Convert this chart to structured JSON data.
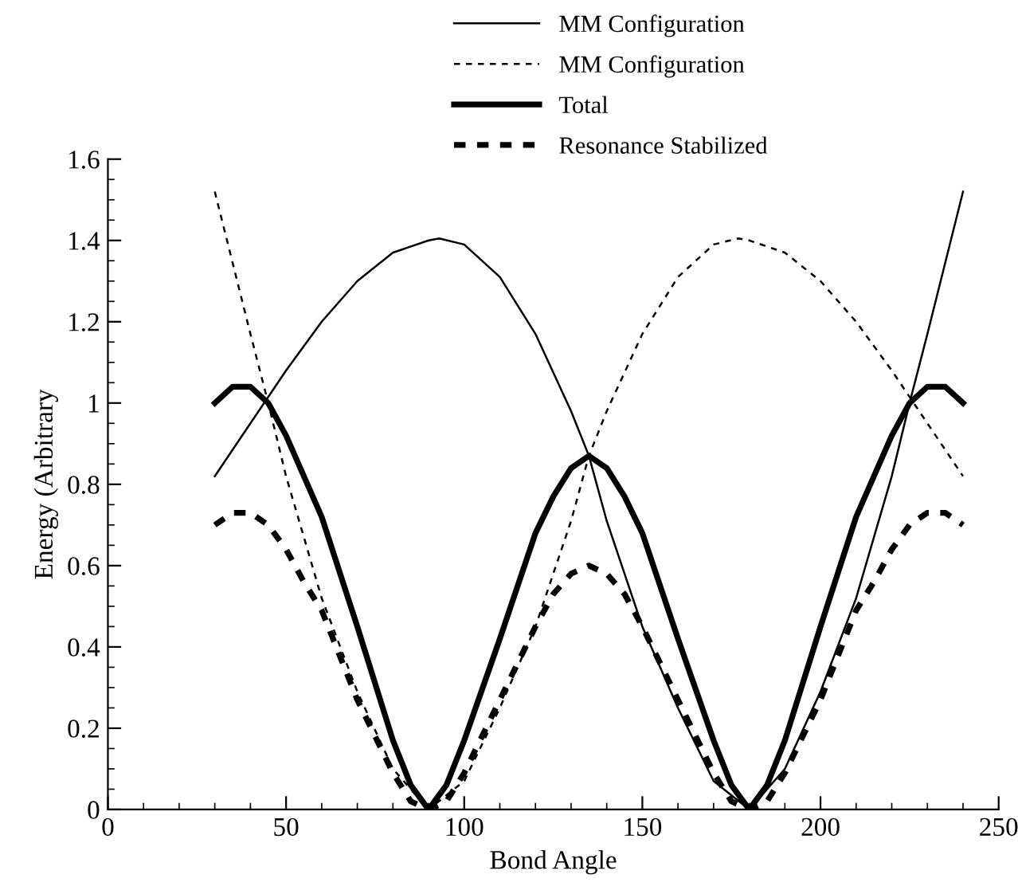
{
  "chart_data": {
    "type": "line",
    "xlabel": "Bond Angle",
    "ylabel": "Energy (Arbitrary",
    "xlim": [
      0,
      250
    ],
    "xticks": [
      0,
      50,
      100,
      150,
      200,
      250
    ],
    "ylim": [
      0,
      1.6
    ],
    "yticks": [
      0,
      0.2,
      0.4,
      0.6,
      0.8,
      1,
      1.2,
      1.4,
      1.6
    ],
    "grid": false,
    "legend": "top",
    "marker": "none",
    "series": [
      {
        "name": "MM Configuration",
        "color": "#000000",
        "line_style": "solid",
        "x": [
          30,
          40,
          50,
          60,
          70,
          80,
          90,
          93,
          100,
          110,
          120,
          130,
          135,
          140,
          150,
          160,
          170,
          180,
          190,
          200,
          210,
          220,
          225,
          230,
          240
        ],
        "values": [
          0.82,
          0.95,
          1.08,
          1.2,
          1.3,
          1.37,
          1.4,
          1.405,
          1.39,
          1.31,
          1.17,
          0.98,
          0.87,
          0.71,
          0.45,
          0.25,
          0.07,
          0,
          0.1,
          0.29,
          0.52,
          0.82,
          1.0,
          1.17,
          1.52
        ]
      },
      {
        "name": "MM Configuration",
        "color": "#000000",
        "line_style": "dashed",
        "x": [
          30,
          40,
          45,
          50,
          60,
          70,
          80,
          90,
          100,
          110,
          120,
          130,
          135,
          140,
          150,
          160,
          170,
          177,
          180,
          190,
          200,
          210,
          220,
          230,
          240
        ],
        "values": [
          1.52,
          1.17,
          1.0,
          0.82,
          0.52,
          0.29,
          0.1,
          0,
          0.07,
          0.25,
          0.45,
          0.71,
          0.87,
          0.98,
          1.17,
          1.31,
          1.39,
          1.405,
          1.4,
          1.37,
          1.3,
          1.2,
          1.08,
          0.95,
          0.82
        ]
      },
      {
        "name": "Total",
        "color": "#000000",
        "line_style": "solid",
        "x": [
          30,
          35,
          40,
          45,
          50,
          55,
          60,
          70,
          80,
          85,
          90,
          95,
          100,
          110,
          120,
          125,
          130,
          135,
          140,
          145,
          150,
          160,
          170,
          175,
          180,
          185,
          190,
          200,
          210,
          215,
          220,
          225,
          230,
          235,
          240
        ],
        "values": [
          1.0,
          1.04,
          1.04,
          1.0,
          0.92,
          0.82,
          0.72,
          0.45,
          0.17,
          0.06,
          0,
          0.06,
          0.17,
          0.42,
          0.68,
          0.77,
          0.84,
          0.87,
          0.84,
          0.77,
          0.68,
          0.42,
          0.17,
          0.06,
          0,
          0.06,
          0.17,
          0.45,
          0.72,
          0.82,
          0.92,
          1.0,
          1.04,
          1.04,
          1.0
        ]
      },
      {
        "name": "Resonance Stabilized",
        "color": "#000000",
        "line_style": "dashed",
        "x": [
          30,
          35,
          40,
          45,
          50,
          55,
          60,
          70,
          80,
          85,
          90,
          95,
          100,
          110,
          120,
          125,
          130,
          135,
          140,
          145,
          150,
          160,
          170,
          175,
          180,
          185,
          190,
          200,
          210,
          215,
          220,
          225,
          230,
          235,
          240
        ],
        "values": [
          0.7,
          0.73,
          0.73,
          0.7,
          0.64,
          0.56,
          0.49,
          0.27,
          0.09,
          0.02,
          0,
          0.02,
          0.09,
          0.27,
          0.45,
          0.53,
          0.58,
          0.6,
          0.58,
          0.53,
          0.45,
          0.27,
          0.09,
          0.02,
          0,
          0.02,
          0.09,
          0.27,
          0.49,
          0.56,
          0.64,
          0.7,
          0.73,
          0.73,
          0.7
        ]
      }
    ]
  }
}
